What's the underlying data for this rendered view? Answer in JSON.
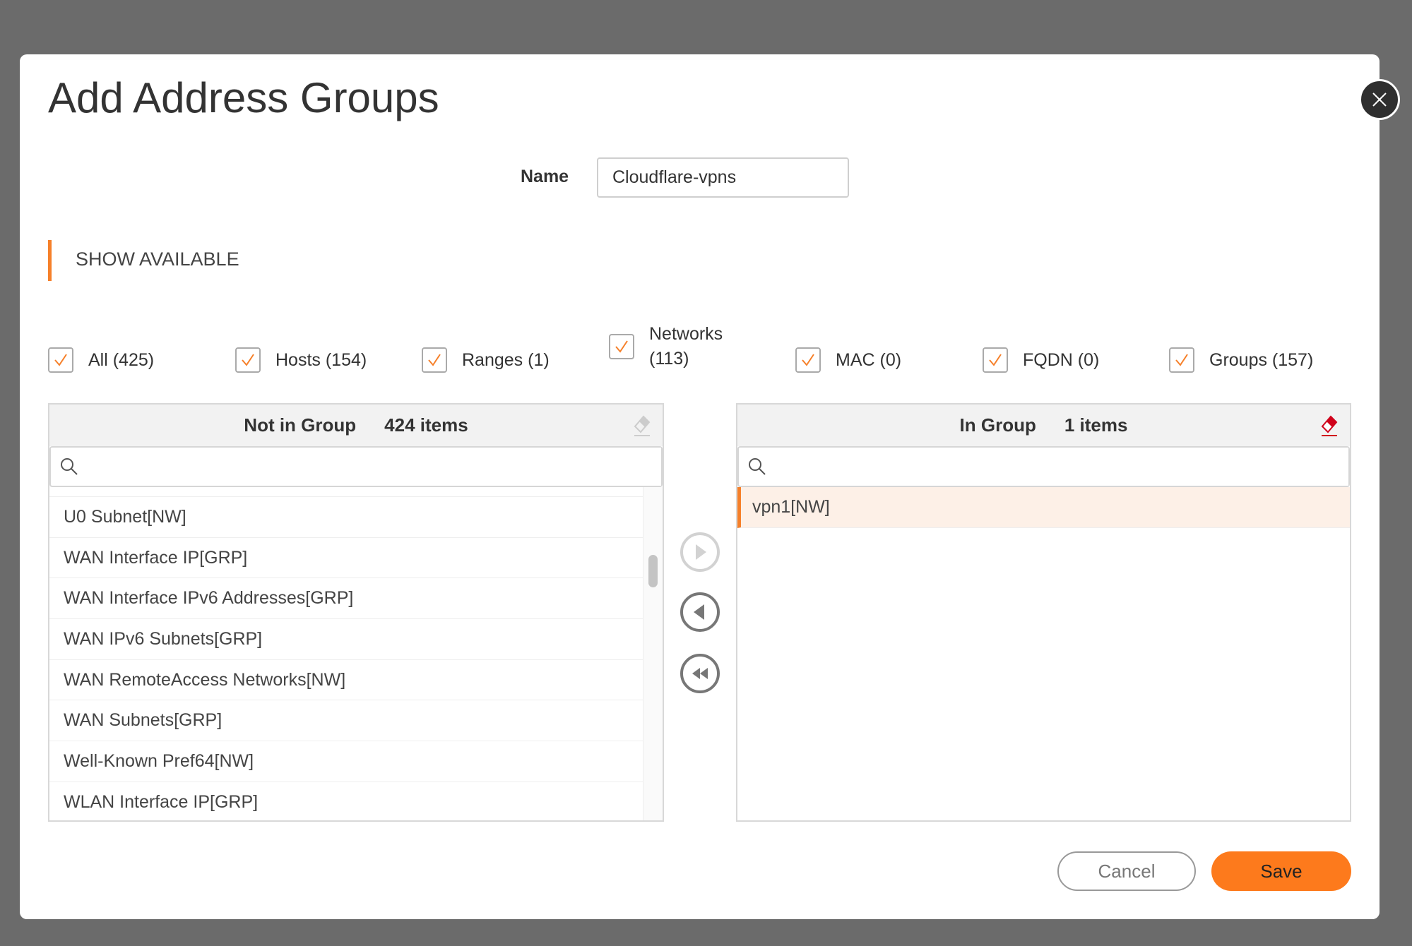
{
  "dialog": {
    "title": "Add Address Groups"
  },
  "name": {
    "label": "Name",
    "value": "Cloudflare-vpns"
  },
  "show_available": {
    "label": "SHOW AVAILABLE"
  },
  "filters": [
    {
      "label": "All (425)",
      "checked": true
    },
    {
      "label": "Hosts (154)",
      "checked": true
    },
    {
      "label": "Ranges (1)",
      "checked": true
    },
    {
      "label_line1": "Networks",
      "label_line2": "(113)",
      "checked": true
    },
    {
      "label": "MAC (0)",
      "checked": true
    },
    {
      "label": "FQDN (0)",
      "checked": true
    },
    {
      "label": "Groups (157)",
      "checked": true
    }
  ],
  "not_in_group": {
    "title": "Not in Group",
    "count": "424 items",
    "search_placeholder": "",
    "items": [
      "U0 Subnet[NW]",
      "WAN Interface IP[GRP]",
      "WAN Interface IPv6 Addresses[GRP]",
      "WAN IPv6 Subnets[GRP]",
      "WAN RemoteAccess Networks[NW]",
      "WAN Subnets[GRP]",
      "Well-Known Pref64[NW]",
      "WLAN Interface IP[GRP]"
    ]
  },
  "in_group": {
    "title": "In Group",
    "count": "1 items",
    "search_placeholder": "",
    "items": [
      "vpn1[NW]"
    ]
  },
  "buttons": {
    "cancel": "Cancel",
    "save": "Save"
  },
  "colors": {
    "accent": "#fd7a1c",
    "selected_row": "#fdf0e7",
    "eraser_active": "#d0021b"
  }
}
